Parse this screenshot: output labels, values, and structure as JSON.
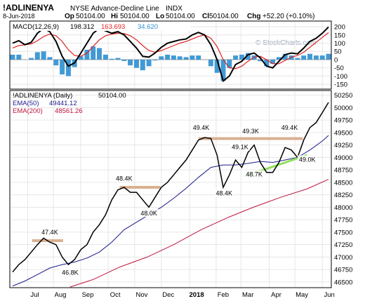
{
  "header": {
    "symbol": "!ADLINENYA",
    "name": "NYSE Advance-Decline Line",
    "exchange": "INDX",
    "date": "8-Jun-2018",
    "ohlc": [
      {
        "label": "Op",
        "value": "50104.00"
      },
      {
        "label": "Hi",
        "value": "50104.00"
      },
      {
        "label": "Lo",
        "value": "50104.00"
      },
      {
        "label": "Cl",
        "value": "50104.00"
      }
    ],
    "chg_label": "Chg",
    "chg_value": "+52.20 (+0.10%)",
    "watermark": "© StockCharts.com"
  },
  "chart_data": [
    {
      "type": "line",
      "panel": "MACD",
      "legend": [
        {
          "label": "MACD(12,26,9)",
          "value": "198.312",
          "color": "#000000"
        },
        {
          "label": "",
          "value": "163.693",
          "color": "#e02020"
        },
        {
          "label": "",
          "value": "34.620",
          "color": "#2e8fd0"
        }
      ],
      "y_ticks": [
        "200",
        "150",
        "100",
        "50",
        "0",
        "-50",
        "-100",
        "-150"
      ],
      "ylim": [
        -175,
        230
      ],
      "x_start": "2017-06-16",
      "x_end": "2018-06-08",
      "macd": [
        [
          "2017-06-16",
          100
        ],
        [
          "2017-06-23",
          115
        ],
        [
          "2017-06-30",
          90
        ],
        [
          "2017-07-07",
          105
        ],
        [
          "2017-07-14",
          160
        ],
        [
          "2017-07-21",
          190
        ],
        [
          "2017-07-28",
          170
        ],
        [
          "2017-08-04",
          110
        ],
        [
          "2017-08-11",
          20
        ],
        [
          "2017-08-18",
          -40
        ],
        [
          "2017-08-25",
          -20
        ],
        [
          "2017-09-01",
          40
        ],
        [
          "2017-09-08",
          100
        ],
        [
          "2017-09-15",
          160
        ],
        [
          "2017-09-22",
          190
        ],
        [
          "2017-09-29",
          175
        ],
        [
          "2017-10-06",
          160
        ],
        [
          "2017-10-13",
          170
        ],
        [
          "2017-10-20",
          150
        ],
        [
          "2017-10-27",
          110
        ],
        [
          "2017-11-03",
          70
        ],
        [
          "2017-11-10",
          20
        ],
        [
          "2017-11-17",
          15
        ],
        [
          "2017-11-24",
          40
        ],
        [
          "2017-12-01",
          75
        ],
        [
          "2017-12-08",
          100
        ],
        [
          "2017-12-15",
          110
        ],
        [
          "2017-12-22",
          120
        ],
        [
          "2017-12-29",
          125
        ],
        [
          "2018-01-05",
          150
        ],
        [
          "2018-01-12",
          165
        ],
        [
          "2018-01-19",
          150
        ],
        [
          "2018-01-26",
          90
        ],
        [
          "2018-02-02",
          0
        ],
        [
          "2018-02-09",
          -130
        ],
        [
          "2018-02-16",
          -100
        ],
        [
          "2018-02-23",
          -30
        ],
        [
          "2018-03-02",
          -10
        ],
        [
          "2018-03-09",
          30
        ],
        [
          "2018-03-16",
          40
        ],
        [
          "2018-03-23",
          10
        ],
        [
          "2018-03-30",
          -40
        ],
        [
          "2018-04-06",
          -50
        ],
        [
          "2018-04-13",
          -10
        ],
        [
          "2018-04-20",
          30
        ],
        [
          "2018-04-27",
          40
        ],
        [
          "2018-05-04",
          35
        ],
        [
          "2018-05-11",
          70
        ],
        [
          "2018-05-18",
          110
        ],
        [
          "2018-05-25",
          130
        ],
        [
          "2018-06-01",
          160
        ],
        [
          "2018-06-08",
          198
        ]
      ],
      "signal": [
        [
          "2017-06-16",
          70
        ],
        [
          "2017-06-23",
          85
        ],
        [
          "2017-06-30",
          90
        ],
        [
          "2017-07-07",
          95
        ],
        [
          "2017-07-14",
          115
        ],
        [
          "2017-07-21",
          140
        ],
        [
          "2017-07-28",
          155
        ],
        [
          "2017-08-04",
          145
        ],
        [
          "2017-08-11",
          110
        ],
        [
          "2017-08-18",
          60
        ],
        [
          "2017-08-25",
          25
        ],
        [
          "2017-09-01",
          20
        ],
        [
          "2017-09-08",
          40
        ],
        [
          "2017-09-15",
          80
        ],
        [
          "2017-09-22",
          120
        ],
        [
          "2017-09-29",
          145
        ],
        [
          "2017-10-06",
          155
        ],
        [
          "2017-10-13",
          160
        ],
        [
          "2017-10-20",
          158
        ],
        [
          "2017-10-27",
          145
        ],
        [
          "2017-11-03",
          120
        ],
        [
          "2017-11-10",
          85
        ],
        [
          "2017-11-17",
          55
        ],
        [
          "2017-11-24",
          45
        ],
        [
          "2017-12-01",
          55
        ],
        [
          "2017-12-08",
          70
        ],
        [
          "2017-12-15",
          85
        ],
        [
          "2017-12-22",
          100
        ],
        [
          "2017-12-29",
          110
        ],
        [
          "2018-01-05",
          125
        ],
        [
          "2018-01-12",
          140
        ],
        [
          "2018-01-19",
          150
        ],
        [
          "2018-01-26",
          130
        ],
        [
          "2018-02-02",
          80
        ],
        [
          "2018-02-09",
          0
        ],
        [
          "2018-02-16",
          -50
        ],
        [
          "2018-02-23",
          -55
        ],
        [
          "2018-03-02",
          -40
        ],
        [
          "2018-03-09",
          -10
        ],
        [
          "2018-03-16",
          15
        ],
        [
          "2018-03-23",
          20
        ],
        [
          "2018-03-30",
          0
        ],
        [
          "2018-04-06",
          -25
        ],
        [
          "2018-04-13",
          -25
        ],
        [
          "2018-04-20",
          -5
        ],
        [
          "2018-04-27",
          15
        ],
        [
          "2018-05-04",
          25
        ],
        [
          "2018-05-11",
          45
        ],
        [
          "2018-05-18",
          75
        ],
        [
          "2018-05-25",
          105
        ],
        [
          "2018-06-01",
          135
        ],
        [
          "2018-06-08",
          164
        ]
      ]
    },
    {
      "type": "line",
      "panel": "price",
      "legend": [
        {
          "label": "!ADLINENYA (Daily)",
          "value": "50104.00",
          "color": "#000000"
        },
        {
          "label": "EMA(50)",
          "value": "49441.12",
          "color": "#1a1a8c"
        },
        {
          "label": "EMA(200)",
          "value": "48561.26",
          "color": "#c0143c"
        }
      ],
      "y_ticks": [
        "50250",
        "50000",
        "49750",
        "49500",
        "49250",
        "49000",
        "48750",
        "48500",
        "48250",
        "48000",
        "47750",
        "47500",
        "47250",
        "47000",
        "46750",
        "46500"
      ],
      "ylim": [
        46400,
        50330
      ],
      "x_ticks": [
        {
          "label": "Jul",
          "date": "2017-07-03"
        },
        {
          "label": "Aug",
          "date": "2017-08-01"
        },
        {
          "label": "Sep",
          "date": "2017-09-01"
        },
        {
          "label": "Oct",
          "date": "2017-10-02"
        },
        {
          "label": "Nov",
          "date": "2017-11-01"
        },
        {
          "label": "Dec",
          "date": "2017-12-01"
        },
        {
          "label": "2018",
          "date": "2018-01-02",
          "bold": true
        },
        {
          "label": "Feb",
          "date": "2018-02-01"
        },
        {
          "label": "Mar",
          "date": "2018-03-01"
        },
        {
          "label": "Apr",
          "date": "2018-04-02"
        },
        {
          "label": "May",
          "date": "2018-05-01"
        },
        {
          "label": "Jun",
          "date": "2018-06-01"
        }
      ],
      "x_start": "2017-06-16",
      "x_end": "2018-06-08",
      "ad_line": [
        [
          "2017-06-16",
          46700
        ],
        [
          "2017-06-23",
          46850
        ],
        [
          "2017-06-30",
          46950
        ],
        [
          "2017-07-07",
          47100
        ],
        [
          "2017-07-14",
          47250
        ],
        [
          "2017-07-21",
          47380
        ],
        [
          "2017-07-28",
          47300
        ],
        [
          "2017-08-04",
          47250
        ],
        [
          "2017-08-11",
          47000
        ],
        [
          "2017-08-18",
          46850
        ],
        [
          "2017-08-25",
          46950
        ],
        [
          "2017-09-01",
          47150
        ],
        [
          "2017-09-08",
          47250
        ],
        [
          "2017-09-15",
          47500
        ],
        [
          "2017-09-22",
          47650
        ],
        [
          "2017-09-29",
          47850
        ],
        [
          "2017-10-06",
          48150
        ],
        [
          "2017-10-13",
          48350
        ],
        [
          "2017-10-20",
          48400
        ],
        [
          "2017-10-27",
          48300
        ],
        [
          "2017-11-03",
          48300
        ],
        [
          "2017-11-10",
          48150
        ],
        [
          "2017-11-17",
          48000
        ],
        [
          "2017-11-24",
          48200
        ],
        [
          "2017-12-01",
          48400
        ],
        [
          "2017-12-08",
          48500
        ],
        [
          "2017-12-15",
          48650
        ],
        [
          "2017-12-22",
          48800
        ],
        [
          "2017-12-29",
          48950
        ],
        [
          "2018-01-05",
          49150
        ],
        [
          "2018-01-12",
          49350
        ],
        [
          "2018-01-19",
          49400
        ],
        [
          "2018-01-26",
          49380
        ],
        [
          "2018-02-02",
          49050
        ],
        [
          "2018-02-09",
          48400
        ],
        [
          "2018-02-16",
          48650
        ],
        [
          "2018-02-23",
          48950
        ],
        [
          "2018-03-02",
          48800
        ],
        [
          "2018-03-09",
          49100
        ],
        [
          "2018-03-16",
          49250
        ],
        [
          "2018-03-23",
          48900
        ],
        [
          "2018-03-30",
          48700
        ],
        [
          "2018-04-06",
          48700
        ],
        [
          "2018-04-13",
          48900
        ],
        [
          "2018-04-20",
          49200
        ],
        [
          "2018-04-27",
          49150
        ],
        [
          "2018-05-04",
          49000
        ],
        [
          "2018-05-11",
          49350
        ],
        [
          "2018-05-18",
          49600
        ],
        [
          "2018-05-25",
          49700
        ],
        [
          "2018-06-01",
          49900
        ],
        [
          "2018-06-08",
          50104
        ]
      ],
      "ema50": [
        [
          "2017-06-16",
          46420
        ],
        [
          "2017-06-30",
          46520
        ],
        [
          "2017-07-14",
          46650
        ],
        [
          "2017-07-28",
          46780
        ],
        [
          "2017-08-11",
          46850
        ],
        [
          "2017-08-25",
          46900
        ],
        [
          "2017-09-08",
          46980
        ],
        [
          "2017-09-22",
          47100
        ],
        [
          "2017-10-06",
          47300
        ],
        [
          "2017-10-20",
          47550
        ],
        [
          "2017-11-03",
          47700
        ],
        [
          "2017-11-17",
          47850
        ],
        [
          "2017-12-01",
          48000
        ],
        [
          "2017-12-15",
          48180
        ],
        [
          "2017-12-29",
          48380
        ],
        [
          "2018-01-12",
          48600
        ],
        [
          "2018-01-26",
          48800
        ],
        [
          "2018-02-09",
          48850
        ],
        [
          "2018-02-23",
          48850
        ],
        [
          "2018-03-09",
          48880
        ],
        [
          "2018-03-23",
          48920
        ],
        [
          "2018-04-06",
          48900
        ],
        [
          "2018-04-20",
          48950
        ],
        [
          "2018-05-04",
          49000
        ],
        [
          "2018-05-18",
          49150
        ],
        [
          "2018-06-01",
          49330
        ],
        [
          "2018-06-08",
          49441
        ]
      ],
      "ema200": [
        [
          "2017-08-20",
          46400
        ],
        [
          "2017-09-15",
          46550
        ],
        [
          "2017-10-15",
          46800
        ],
        [
          "2017-11-15",
          47000
        ],
        [
          "2017-12-15",
          47250
        ],
        [
          "2018-01-15",
          47550
        ],
        [
          "2018-02-15",
          47800
        ],
        [
          "2018-03-15",
          48000
        ],
        [
          "2018-04-15",
          48200
        ],
        [
          "2018-05-15",
          48370
        ],
        [
          "2018-06-08",
          48561
        ]
      ],
      "resistance_lines": [
        {
          "from": "2017-07-08",
          "to": "2017-08-12",
          "value": 47330,
          "color": "#d9b092"
        },
        {
          "from": "2017-10-15",
          "to": "2017-11-30",
          "value": 48400,
          "color": "#d9b092"
        },
        {
          "from": "2018-01-12",
          "to": "2018-05-10",
          "value": 49380,
          "color": "#d9b092"
        }
      ],
      "support_line": {
        "from": [
          "2018-03-05",
          48620
        ],
        "to": [
          "2018-05-15",
          49050
        ],
        "color": "#8fe05a"
      },
      "annotations": [
        {
          "text": "47.4K",
          "x": "2017-07-28",
          "y": 47470
        },
        {
          "text": "46.8K",
          "x": "2017-08-20",
          "y": 46660
        },
        {
          "text": "48.4K",
          "x": "2017-10-20",
          "y": 48550
        },
        {
          "text": "48.0K",
          "x": "2017-11-17",
          "y": 47850
        },
        {
          "text": "49.4K",
          "x": "2018-01-15",
          "y": 49570
        },
        {
          "text": "49.3K",
          "x": "2018-03-12",
          "y": 49500
        },
        {
          "text": "49.4K",
          "x": "2018-04-25",
          "y": 49570
        },
        {
          "text": "49.1K",
          "x": "2018-02-28",
          "y": 49180
        },
        {
          "text": "48.7K",
          "x": "2018-03-16",
          "y": 48630
        },
        {
          "text": "49.0K",
          "x": "2018-05-15",
          "y": 48930
        },
        {
          "text": "48.4K",
          "x": "2018-02-10",
          "y": 48250
        }
      ]
    }
  ],
  "macd_histogram": [
    [
      "2017-06-16",
      30
    ],
    [
      "2017-06-23",
      30
    ],
    [
      "2017-06-30",
      0
    ],
    [
      "2017-07-07",
      10
    ],
    [
      "2017-07-14",
      45
    ],
    [
      "2017-07-21",
      50
    ],
    [
      "2017-07-28",
      15
    ],
    [
      "2017-08-04",
      -35
    ],
    [
      "2017-08-11",
      -90
    ],
    [
      "2017-08-18",
      -100
    ],
    [
      "2017-08-25",
      -45
    ],
    [
      "2017-09-01",
      20
    ],
    [
      "2017-09-08",
      60
    ],
    [
      "2017-09-15",
      80
    ],
    [
      "2017-09-22",
      70
    ],
    [
      "2017-09-29",
      30
    ],
    [
      "2017-10-06",
      5
    ],
    [
      "2017-10-13",
      10
    ],
    [
      "2017-10-20",
      -8
    ],
    [
      "2017-10-27",
      -35
    ],
    [
      "2017-11-03",
      -50
    ],
    [
      "2017-11-10",
      -65
    ],
    [
      "2017-11-17",
      -40
    ],
    [
      "2017-11-24",
      -5
    ],
    [
      "2017-12-01",
      20
    ],
    [
      "2017-12-08",
      30
    ],
    [
      "2017-12-15",
      25
    ],
    [
      "2017-12-22",
      20
    ],
    [
      "2017-12-29",
      15
    ],
    [
      "2018-01-05",
      25
    ],
    [
      "2018-01-12",
      25
    ],
    [
      "2018-01-19",
      0
    ],
    [
      "2018-01-26",
      -40
    ],
    [
      "2018-02-02",
      -80
    ],
    [
      "2018-02-09",
      -130
    ],
    [
      "2018-02-16",
      -50
    ],
    [
      "2018-02-23",
      25
    ],
    [
      "2018-03-02",
      30
    ],
    [
      "2018-03-09",
      40
    ],
    [
      "2018-03-16",
      25
    ],
    [
      "2018-03-23",
      -10
    ],
    [
      "2018-03-30",
      -40
    ],
    [
      "2018-04-06",
      -25
    ],
    [
      "2018-04-13",
      15
    ],
    [
      "2018-04-20",
      35
    ],
    [
      "2018-04-27",
      25
    ],
    [
      "2018-05-04",
      10
    ],
    [
      "2018-05-11",
      25
    ],
    [
      "2018-05-18",
      35
    ],
    [
      "2018-05-25",
      25
    ],
    [
      "2018-06-01",
      25
    ],
    [
      "2018-06-08",
      35
    ]
  ]
}
